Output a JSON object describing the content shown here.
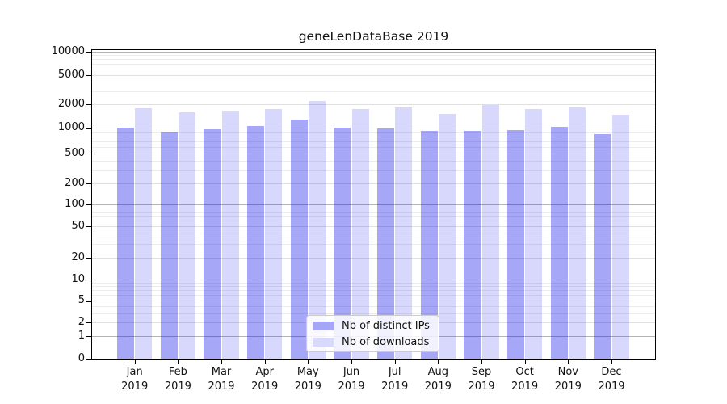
{
  "chart_data": {
    "type": "bar",
    "title": "geneLenDataBase 2019",
    "categories": [
      "Jan 2019",
      "Feb 2019",
      "Mar 2019",
      "Apr 2019",
      "May 2019",
      "Jun 2019",
      "Jul 2019",
      "Aug 2019",
      "Sep 2019",
      "Oct 2019",
      "Nov 2019",
      "Dec 2019"
    ],
    "series": [
      {
        "name": "Nb of distinct IPs",
        "color": "#a6a6f6",
        "fill_rgba": "rgba(15,15,235,0.37)",
        "values": [
          1015,
          905,
          975,
          1045,
          1280,
          1010,
          980,
          920,
          930,
          950,
          1030,
          845
        ]
      },
      {
        "name": "Nb of downloads",
        "color": "#d9d9fc",
        "fill_rgba": "rgba(15,15,235,0.16)",
        "values": [
          1750,
          1570,
          1655,
          1715,
          2210,
          1705,
          1790,
          1490,
          1930,
          1730,
          1785,
          1470
        ]
      }
    ],
    "yscale": "symlog",
    "yticks": [
      0,
      1,
      2,
      5,
      10,
      20,
      50,
      100,
      200,
      500,
      1000,
      2000,
      5000,
      10000
    ],
    "ylim": [
      0,
      11000
    ],
    "xlabel": "",
    "ylabel": "",
    "grid": "both",
    "legend_position": "lower center",
    "grid_major_color": "#b4b4b4",
    "grid_minor_color": "#ececec"
  }
}
